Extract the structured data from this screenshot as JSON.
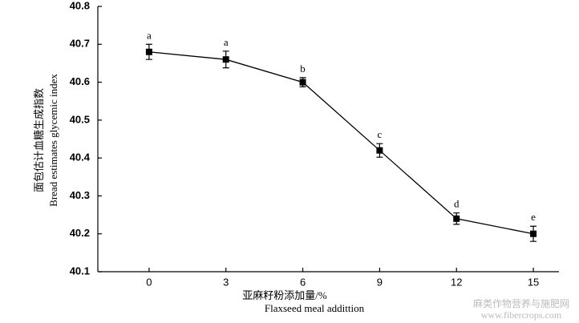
{
  "chart_data": {
    "type": "line",
    "x_label": [
      "亚麻籽粉添加量/%",
      "Flaxseed meal addittion"
    ],
    "y_label": [
      "面包估计血糖生成指数",
      "Bread estimates glycemic index"
    ],
    "x": [
      0,
      3,
      6,
      9,
      12,
      15
    ],
    "series": [
      {
        "color": "#000000",
        "values": [
          40.68,
          40.66,
          40.6,
          40.42,
          40.24,
          40.2
        ],
        "errors": [
          0.02,
          0.022,
          0.012,
          0.018,
          0.015,
          0.02
        ],
        "annotations": [
          "a",
          "a",
          "b",
          "c",
          "d",
          "e"
        ]
      }
    ],
    "xlim": [
      -2,
      16
    ],
    "xticks": [
      0,
      3,
      6,
      9,
      12,
      15
    ],
    "ylim": [
      40.1,
      40.8
    ],
    "yticks": [
      40.1,
      40.2,
      40.3,
      40.4,
      40.5,
      40.6,
      40.7,
      40.8
    ],
    "watermark": [
      "麻类作物营养与施肥网",
      "www.fibercrops.com"
    ]
  }
}
